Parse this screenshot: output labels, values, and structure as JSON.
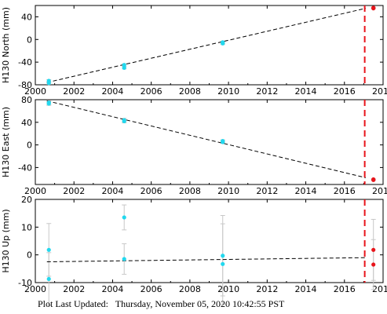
{
  "footer": {
    "label": "Plot Last Updated:",
    "value": "Thursday, November 05, 2020 10:42:55 PST"
  },
  "colors": {
    "data_point": "#22d8ee",
    "recent_point": "#e8141b",
    "error_bar": "#c8c8c8",
    "trend_line": "#000000",
    "marker_line": "#e8141b"
  },
  "chart_data": [
    {
      "type": "scatter",
      "ylabel": "H130 North (mm)",
      "xlim": [
        2000,
        2018
      ],
      "ylim": [
        -80,
        60
      ],
      "xticks": [
        2000,
        2002,
        2004,
        2006,
        2008,
        2010,
        2012,
        2014,
        2016,
        2018
      ],
      "yticks": [
        -80,
        -40,
        0,
        40
      ],
      "vertical_marker_x": 2017.05,
      "trend": [
        [
          2000.6,
          -76
        ],
        [
          2017.1,
          55
        ]
      ],
      "series": [
        {
          "values": [
            {
              "x": 2000.7,
              "y": -73,
              "err": 2
            },
            {
              "x": 2000.7,
              "y": -77,
              "err": 2
            },
            {
              "x": 2004.6,
              "y": -45,
              "err": 2
            },
            {
              "x": 2004.6,
              "y": -50,
              "err": 2
            },
            {
              "x": 2009.7,
              "y": -5,
              "err": 2
            },
            {
              "x": 2009.7,
              "y": -7,
              "err": 2
            }
          ]
        },
        {
          "values": [
            {
              "x": 2017.5,
              "y": 55,
              "err": 1
            },
            {
              "x": 2017.5,
              "y": 56,
              "err": 1
            }
          ]
        }
      ]
    },
    {
      "type": "scatter",
      "ylabel": "H130 East (mm)",
      "xlim": [
        2000,
        2018
      ],
      "ylim": [
        -70,
        80
      ],
      "xticks": [
        2000,
        2002,
        2004,
        2006,
        2008,
        2010,
        2012,
        2014,
        2016,
        2018
      ],
      "yticks": [
        -40,
        0,
        40,
        80
      ],
      "vertical_marker_x": 2017.05,
      "trend": [
        [
          2000.6,
          78
        ],
        [
          2017.1,
          -58
        ]
      ],
      "series": [
        {
          "values": [
            {
              "x": 2000.7,
              "y": 73,
              "err": 3
            },
            {
              "x": 2000.7,
              "y": 75,
              "err": 3
            },
            {
              "x": 2004.6,
              "y": 42,
              "err": 3
            },
            {
              "x": 2004.6,
              "y": 44,
              "err": 3
            },
            {
              "x": 2009.7,
              "y": 5,
              "err": 2
            },
            {
              "x": 2009.7,
              "y": 7,
              "err": 2
            }
          ]
        },
        {
          "values": [
            {
              "x": 2017.5,
              "y": -61,
              "err": 1
            },
            {
              "x": 2017.5,
              "y": -62,
              "err": 1
            }
          ]
        }
      ]
    },
    {
      "type": "scatter",
      "ylabel": "H130 Up (mm)",
      "xlim": [
        2000,
        2018
      ],
      "ylim": [
        -10,
        20
      ],
      "xticks": [
        2000,
        2002,
        2004,
        2006,
        2008,
        2010,
        2012,
        2014,
        2016,
        2018
      ],
      "yticks": [
        -10,
        0,
        10,
        20
      ],
      "vertical_marker_x": 2017.05,
      "trend": [
        [
          2000.6,
          -2.5
        ],
        [
          2017.1,
          -1.0
        ]
      ],
      "series": [
        {
          "values": [
            {
              "x": 2000.7,
              "y": 1.8,
              "err": 9.5
            },
            {
              "x": 2000.7,
              "y": -8.7,
              "err": 9.5
            },
            {
              "x": 2004.6,
              "y": 13.5,
              "err": 4.5
            },
            {
              "x": 2004.6,
              "y": -1.5,
              "err": 5.5
            },
            {
              "x": 2009.7,
              "y": -0.3,
              "err": 14.5
            },
            {
              "x": 2009.7,
              "y": -3.3,
              "err": 14.5
            }
          ]
        },
        {
          "values": [
            {
              "x": 2017.5,
              "y": 1.8,
              "err": 11
            },
            {
              "x": 2017.5,
              "y": -3.5,
              "err": 9
            }
          ]
        }
      ]
    }
  ]
}
